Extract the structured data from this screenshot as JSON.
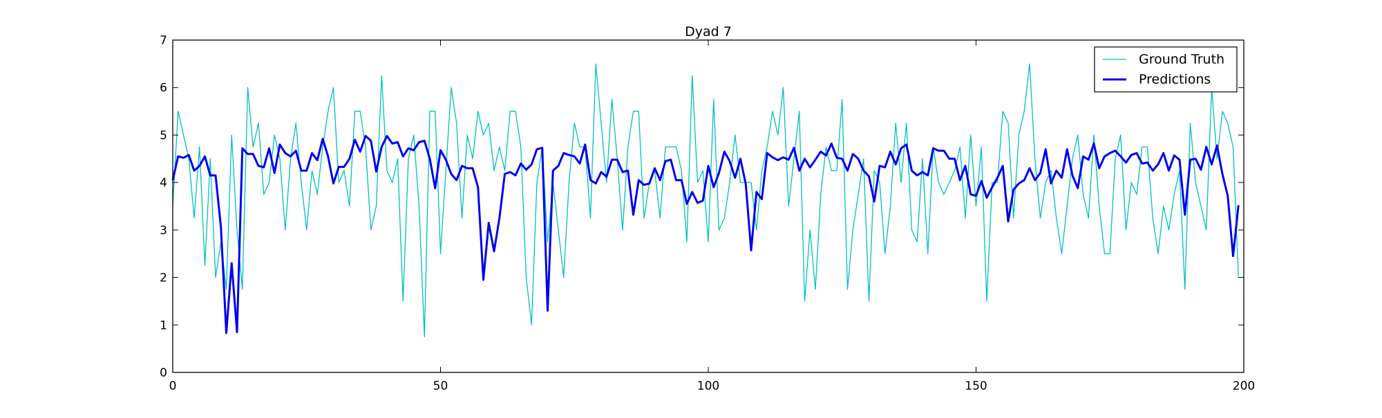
{
  "chart_data": {
    "type": "line",
    "title": "Dyad 7",
    "xlabel": "",
    "ylabel": "",
    "xlim": [
      0,
      200
    ],
    "ylim": [
      0,
      7
    ],
    "x_ticks": [
      0,
      50,
      100,
      150,
      200
    ],
    "y_ticks": [
      0,
      1,
      2,
      3,
      4,
      5,
      6,
      7
    ],
    "grid": false,
    "legend_placement": "top-right",
    "series": [
      {
        "name": "Ground Truth",
        "color": "#00bfbf",
        "style": "thin",
        "values": [
          3.5,
          5.5,
          5.0,
          4.5,
          3.25,
          4.75,
          2.25,
          4.5,
          2.0,
          2.75,
          1.75,
          5.0,
          3.0,
          1.75,
          6.0,
          4.75,
          5.25,
          3.75,
          4.0,
          5.0,
          4.5,
          3.0,
          4.5,
          5.25,
          4.0,
          3.0,
          4.25,
          3.75,
          4.75,
          5.5,
          6.0,
          4.0,
          4.25,
          3.5,
          5.5,
          5.5,
          4.75,
          3.0,
          3.5,
          6.25,
          4.25,
          4.0,
          4.5,
          1.5,
          4.5,
          5.0,
          3.5,
          0.75,
          5.5,
          5.5,
          2.5,
          4.25,
          6.0,
          5.25,
          3.25,
          5.0,
          4.5,
          5.5,
          5.0,
          5.25,
          4.25,
          4.75,
          4.25,
          5.5,
          5.5,
          4.75,
          2.0,
          1.0,
          4.0,
          4.75,
          2.75,
          4.0,
          3.0,
          2.0,
          4.0,
          5.25,
          4.75,
          4.75,
          3.25,
          6.5,
          5.25,
          4.0,
          5.75,
          4.5,
          3.0,
          4.75,
          5.5,
          5.5,
          3.25,
          4.0,
          4.25,
          3.25,
          4.75,
          4.75,
          4.75,
          4.25,
          2.75,
          6.25,
          4.0,
          4.25,
          2.75,
          5.75,
          3.0,
          3.25,
          4.0,
          5.0,
          4.0,
          4.0,
          4.0,
          3.0,
          4.25,
          4.75,
          5.5,
          5.0,
          6.0,
          3.5,
          4.5,
          5.5,
          1.5,
          3.0,
          1.75,
          3.75,
          4.75,
          4.25,
          4.25,
          5.75,
          1.75,
          3.0,
          3.75,
          4.5,
          1.5,
          4.25,
          4.0,
          2.5,
          3.5,
          5.25,
          4.0,
          5.25,
          3.0,
          2.75,
          4.5,
          2.5,
          4.75,
          4.0,
          3.75,
          4.0,
          4.25,
          4.75,
          3.25,
          5.0,
          3.5,
          4.75,
          1.5,
          4.0,
          4.0,
          5.5,
          5.25,
          3.25,
          5.0,
          5.5,
          6.5,
          4.5,
          3.25,
          4.0,
          4.25,
          3.25,
          2.5,
          3.5,
          4.5,
          5.0,
          3.75,
          3.25,
          5.0,
          3.5,
          2.5,
          2.5,
          4.5,
          5.0,
          3.0,
          4.0,
          3.75,
          4.75,
          4.75,
          3.25,
          2.5,
          3.5,
          3.0,
          3.75,
          4.25,
          1.75,
          5.25,
          4.0,
          3.5,
          3.0,
          6.0,
          4.5,
          5.5,
          5.25,
          4.75,
          2.0
        ]
      },
      {
        "name": "Predictions",
        "color": "#0000ee",
        "style": "thick",
        "values": [
          4.05,
          4.55,
          4.52,
          4.58,
          4.25,
          4.35,
          4.55,
          4.15,
          4.15,
          3.05,
          0.83,
          2.3,
          0.85,
          4.72,
          4.6,
          4.6,
          4.35,
          4.32,
          4.72,
          4.2,
          4.8,
          4.62,
          4.55,
          4.67,
          4.25,
          4.25,
          4.62,
          4.47,
          4.92,
          4.55,
          3.98,
          4.33,
          4.33,
          4.5,
          4.9,
          4.65,
          4.98,
          4.88,
          4.23,
          4.75,
          4.98,
          4.82,
          4.85,
          4.55,
          4.72,
          4.68,
          4.85,
          4.88,
          4.5,
          3.88,
          4.68,
          4.48,
          4.18,
          4.05,
          4.35,
          4.3,
          4.3,
          3.9,
          1.95,
          3.15,
          2.55,
          3.25,
          4.18,
          4.22,
          4.15,
          4.4,
          4.27,
          4.38,
          4.7,
          4.73,
          1.3,
          4.25,
          4.35,
          4.62,
          4.58,
          4.55,
          4.4,
          4.8,
          4.05,
          3.98,
          4.22,
          4.12,
          4.48,
          4.48,
          4.22,
          4.25,
          3.32,
          4.05,
          3.95,
          3.98,
          4.3,
          4.05,
          4.45,
          4.48,
          4.05,
          4.05,
          3.55,
          3.8,
          3.57,
          3.62,
          4.35,
          3.9,
          4.2,
          4.65,
          4.45,
          4.1,
          4.5,
          3.97,
          2.57,
          3.8,
          3.65,
          4.62,
          4.53,
          4.47,
          4.53,
          4.48,
          4.73,
          4.25,
          4.5,
          4.32,
          4.48,
          4.65,
          4.57,
          4.82,
          4.52,
          4.5,
          4.25,
          4.6,
          4.5,
          4.25,
          4.13,
          3.6,
          4.35,
          4.32,
          4.65,
          4.38,
          4.72,
          4.8,
          4.25,
          4.15,
          4.22,
          4.15,
          4.72,
          4.67,
          4.67,
          4.5,
          4.5,
          4.05,
          4.35,
          3.75,
          3.72,
          4.03,
          3.68,
          3.9,
          4.1,
          4.35,
          3.18,
          3.85,
          3.98,
          4.05,
          4.3,
          4.05,
          4.2,
          4.7,
          3.98,
          4.25,
          4.1,
          4.7,
          4.15,
          3.88,
          4.55,
          4.48,
          4.82,
          4.3,
          4.55,
          4.62,
          4.67,
          4.55,
          4.42,
          4.58,
          4.62,
          4.4,
          4.42,
          4.25,
          4.38,
          4.62,
          4.25,
          4.57,
          4.48,
          3.32,
          4.48,
          4.5,
          4.27,
          4.75,
          4.38,
          4.78,
          4.18,
          3.72,
          2.45,
          3.52
        ]
      }
    ]
  }
}
